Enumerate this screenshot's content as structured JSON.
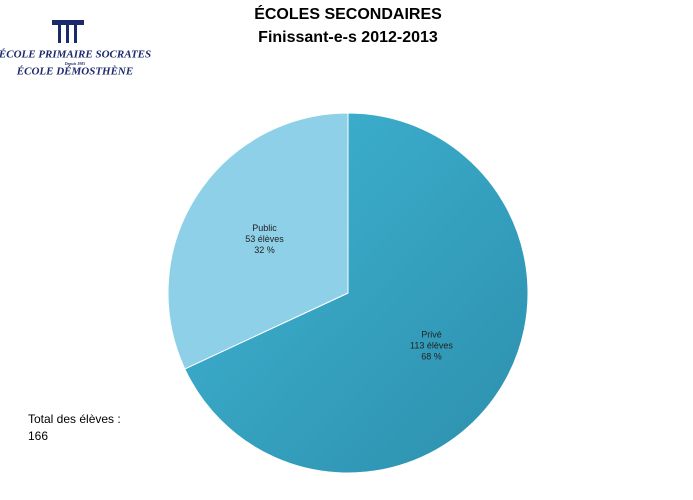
{
  "chart_data": {
    "type": "pie",
    "title": "ÉCOLES SECONDAIRES",
    "subtitle": "Finissant-e-s 2012-2013",
    "categories": [
      "Privé",
      "Public"
    ],
    "values": [
      113,
      53
    ],
    "value_labels": [
      "113 élèves",
      "53 élèves"
    ],
    "percent_labels": [
      "68 %",
      "32 %"
    ],
    "colors": [
      "#35a9c9",
      "#8dd0e7"
    ],
    "total_label": "Total des élèves :",
    "total": "166"
  },
  "logo": {
    "line1": "ÉCOLE PRIMAIRE SOCRATES",
    "since": "Depuis 1985",
    "line2": "ÉCOLE DÉMOSTHÈNE"
  }
}
